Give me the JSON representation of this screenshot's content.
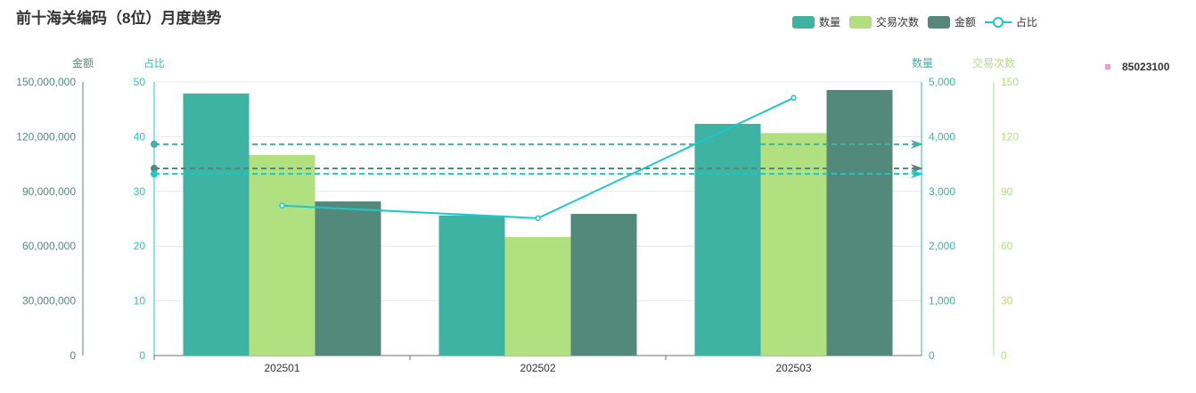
{
  "title": "前十海关编码（8位）月度趋势",
  "side_legend": {
    "label": "85023100",
    "color": "#dda0dd"
  },
  "chart_data": {
    "type": "bar",
    "categories": [
      "202501",
      "202502",
      "202503"
    ],
    "series": [
      {
        "name": "数量",
        "type": "bar",
        "axis": "数量",
        "color": "#3eb3a3",
        "values": [
          4790,
          2560,
          4235
        ]
      },
      {
        "name": "交易次数",
        "type": "bar",
        "axis": "交易次数",
        "color": "#b1e081",
        "values": [
          110,
          65,
          122
        ]
      },
      {
        "name": "金额",
        "type": "bar",
        "axis": "金额",
        "color": "#53897b",
        "values": [
          84500000,
          77700000,
          145600000
        ]
      },
      {
        "name": "占比",
        "type": "line",
        "axis": "占比",
        "color": "#1ec8c8",
        "values": [
          27.4,
          25.1,
          47.1
        ]
      }
    ],
    "average_lines": [
      {
        "series": "数量",
        "value": 3862,
        "color": "#3eb3a3"
      },
      {
        "series": "金额",
        "value": 102600000,
        "color": "#53897b"
      },
      {
        "series": "占比",
        "value": 33.2,
        "color": "#1ec8c8"
      }
    ],
    "axes": [
      {
        "name": "金额",
        "position": "left-outer",
        "range": [
          0,
          150000000
        ],
        "ticks": [
          "0",
          "30,000,000",
          "60,000,000",
          "90,000,000",
          "120,000,000",
          "150,000,000"
        ],
        "color": "#53897b"
      },
      {
        "name": "占比",
        "position": "left",
        "range": [
          0,
          50
        ],
        "ticks": [
          "0",
          "10",
          "20",
          "30",
          "40",
          "50"
        ],
        "color": "#1ec8c8"
      },
      {
        "name": "数量",
        "position": "right",
        "range": [
          0,
          5000
        ],
        "ticks": [
          "0",
          "1,000",
          "2,000",
          "3,000",
          "4,000",
          "5,000"
        ],
        "color": "#3eb3a3"
      },
      {
        "name": "交易次数",
        "position": "right-outer",
        "range": [
          0,
          150
        ],
        "ticks": [
          "0",
          "30",
          "60",
          "90",
          "120",
          "150"
        ],
        "color": "#b1e081"
      }
    ],
    "grid": true,
    "legend": "top-right"
  }
}
